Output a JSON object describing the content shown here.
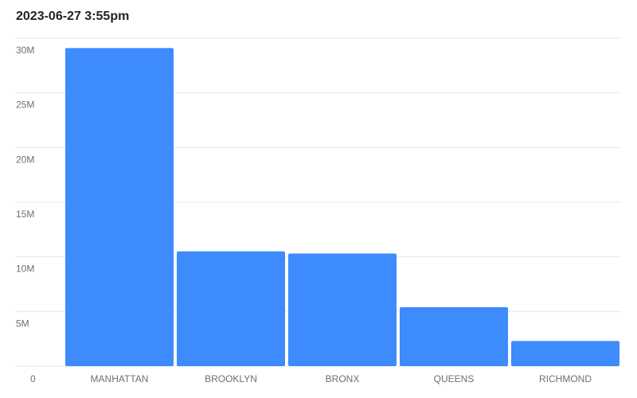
{
  "title": "2023-06-27 3:55pm",
  "colors": {
    "bar": "#3d8bfd",
    "grid": "#e8e8e8",
    "tick_text": "#6b6f76"
  },
  "chart_data": {
    "type": "bar",
    "title": "2023-06-27 3:55pm",
    "xlabel": "",
    "ylabel": "",
    "categories": [
      "MANHATTAN",
      "BROOKLYN",
      "BRONX",
      "QUEENS",
      "RICHMOND"
    ],
    "values": [
      29100000,
      10500000,
      10300000,
      5400000,
      2300000
    ],
    "ylim": [
      0,
      30000000
    ],
    "yticks": [
      0,
      5000000,
      10000000,
      15000000,
      20000000,
      25000000,
      30000000
    ],
    "ytick_labels": [
      "0",
      "5M",
      "10M",
      "15M",
      "20M",
      "25M",
      "30M"
    ],
    "grid": true,
    "legend": "none"
  }
}
